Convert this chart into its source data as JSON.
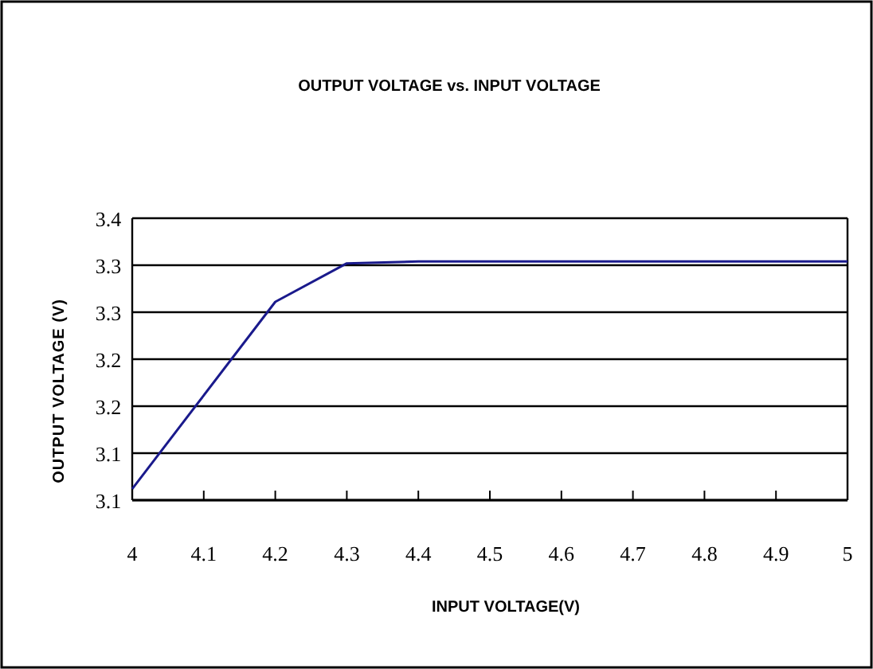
{
  "chart_data": {
    "type": "line",
    "title": "OUTPUT VOLTAGE vs. INPUT VOLTAGE",
    "xlabel": "INPUT VOLTAGE(V)",
    "ylabel": "OUTPUT VOLTAGE (V)",
    "x": [
      4,
      4.2,
      4.3,
      4.4,
      4.5,
      4.6,
      4.7,
      4.8,
      4.9,
      5
    ],
    "series": [
      {
        "color": "#1a1a8c",
        "values": [
          3.112,
          3.311,
          3.352,
          3.354,
          3.354,
          3.354,
          3.354,
          3.354,
          3.354,
          3.354
        ]
      }
    ],
    "xlim": [
      4,
      5
    ],
    "xticks": [
      4,
      4.1,
      4.2,
      4.3,
      4.4,
      4.5,
      4.6,
      4.7,
      4.8,
      4.9,
      5
    ],
    "ylim": [
      3.1,
      3.4
    ],
    "yticks": [
      {
        "value": 3.1,
        "label": "3.1"
      },
      {
        "value": 3.15,
        "label": "3.1"
      },
      {
        "value": 3.2,
        "label": "3.2"
      },
      {
        "value": 3.25,
        "label": "3.2"
      },
      {
        "value": 3.3,
        "label": "3.3"
      },
      {
        "value": 3.35,
        "label": "3.3"
      },
      {
        "value": 3.4,
        "label": "3.4"
      }
    ],
    "grid": "y",
    "marker": "none",
    "line_style": "solid"
  }
}
